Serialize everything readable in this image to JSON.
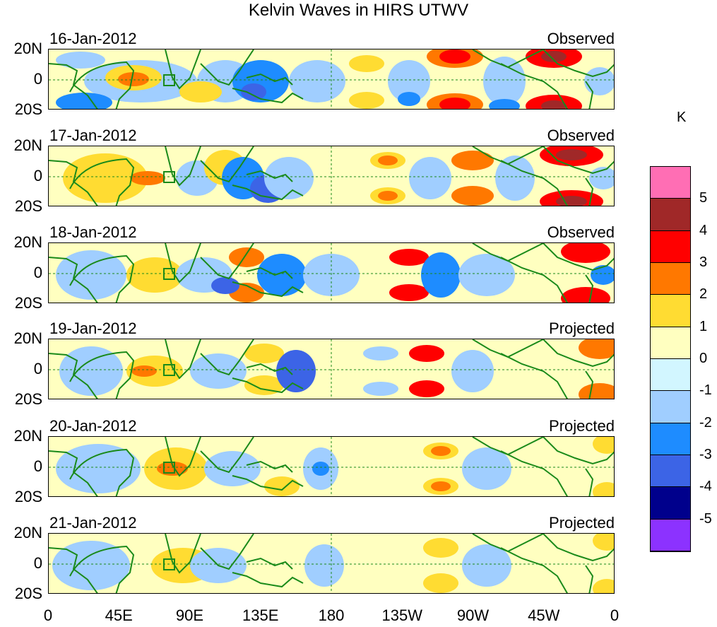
{
  "title": "Kelvin Waves in HIRS UTWV",
  "lat_labels": [
    "20N",
    "0",
    "20S"
  ],
  "lon_labels": [
    "0",
    "45E",
    "90E",
    "135E",
    "180",
    "135W",
    "90W",
    "45W",
    "0"
  ],
  "panels": [
    {
      "date": "16-Jan-2012",
      "status": "Observed"
    },
    {
      "date": "17-Jan-2012",
      "status": "Observed"
    },
    {
      "date": "18-Jan-2012",
      "status": "Observed"
    },
    {
      "date": "19-Jan-2012",
      "status": "Projected"
    },
    {
      "date": "20-Jan-2012",
      "status": "Projected"
    },
    {
      "date": "21-Jan-2012",
      "status": "Projected"
    }
  ],
  "colorbar": {
    "unit": "K",
    "colors": [
      "#ff6eb4",
      "#a02828",
      "#ff0000",
      "#ff7800",
      "#ffdc32",
      "#ffffc0",
      "#d2f6ff",
      "#a0ceff",
      "#1e8cff",
      "#3c64e6",
      "#00008c",
      "#8c32ff"
    ],
    "labels": [
      "5",
      "4",
      "3",
      "2",
      "1",
      "0",
      "-1",
      "-2",
      "-3",
      "-4",
      "-5"
    ]
  },
  "style": {
    "coast": "#1a8a1a",
    "grid": "#1a8a1a"
  }
}
